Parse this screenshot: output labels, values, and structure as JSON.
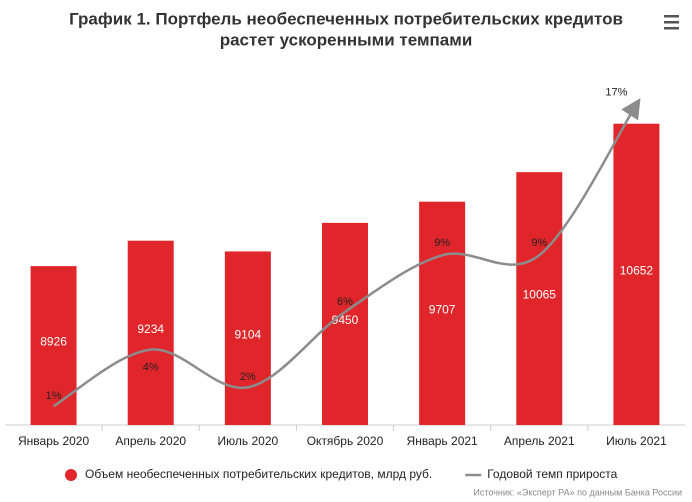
{
  "chart_data": {
    "type": "bar",
    "title": "График 1. Портфель необеспеченных потребительских кредитов",
    "subtitle": "растет ускоренными темпами",
    "categories": [
      "Январь 2020",
      "Апрель 2020",
      "Июль 2020",
      "Октябрь 2020",
      "Январь 2021",
      "Апрель 2021",
      "Июль 2021"
    ],
    "series": [
      {
        "name": "Объем необеспеченных потребительских кредитов, млрд руб.",
        "type": "bar",
        "color": "#e0262b",
        "values": [
          8926,
          9234,
          9104,
          9450,
          9707,
          10065,
          10652
        ]
      },
      {
        "name": "Годовой темп прироста",
        "type": "line",
        "axis": "y2",
        "color": "#8c8c8c",
        "values": [
          1,
          4,
          2,
          6,
          9,
          9,
          17
        ],
        "value_labels": [
          "1%",
          "4%",
          "2%",
          "6%",
          "9%",
          "9%",
          "17%"
        ]
      }
    ],
    "ylim": [
      7000,
      11000
    ],
    "y2lim": [
      0,
      17.5
    ],
    "source": "Источник: «Эксперт РА» по данным Банка России"
  }
}
